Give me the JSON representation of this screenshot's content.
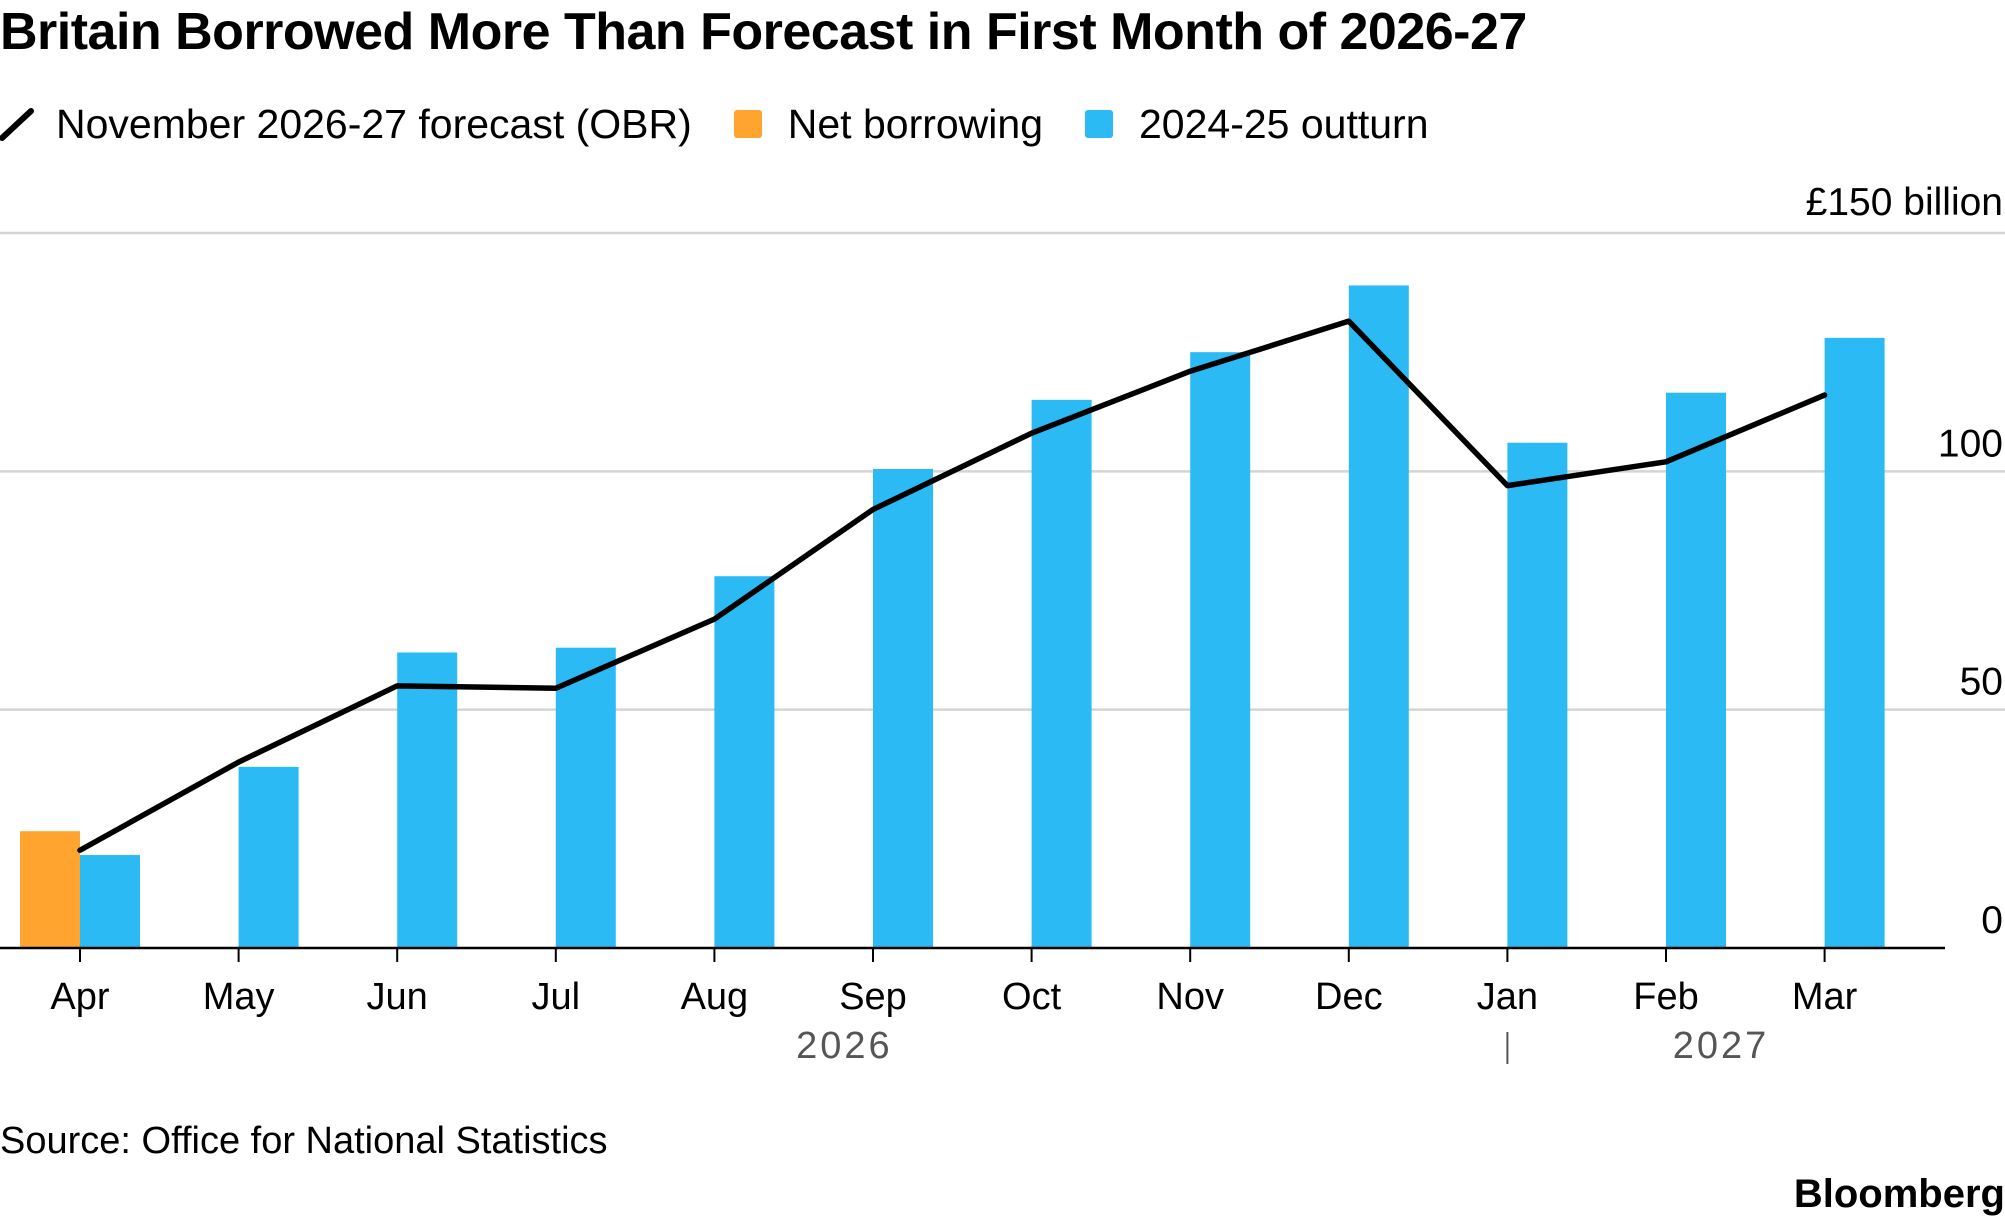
{
  "chart_data": {
    "type": "bar",
    "title": "Britain Borrowed More Than Forecast in First Month of 2026-27",
    "categories": [
      "Apr",
      "May",
      "Jun",
      "Jul",
      "Aug",
      "Sep",
      "Oct",
      "Nov",
      "Dec",
      "Jan",
      "Feb",
      "Mar"
    ],
    "year_labels": [
      {
        "label": "2026",
        "span_start": "Apr",
        "span_end": "Dec"
      },
      {
        "label": "2027",
        "span_start": "Jan",
        "span_end": "Mar"
      }
    ],
    "series": [
      {
        "name": "Net borrowing",
        "kind": "bar",
        "color": "#ffa42e",
        "values": [
          24.5,
          null,
          null,
          null,
          null,
          null,
          null,
          null,
          null,
          null,
          null,
          null
        ]
      },
      {
        "name": "2024-25 outturn",
        "kind": "bar",
        "color": "#2cbaf5",
        "values": [
          19.5,
          38,
          62,
          63,
          78,
          100.5,
          115,
          125,
          139,
          106,
          116.5,
          128
        ]
      },
      {
        "name": "November 2026-27 forecast (OBR)",
        "kind": "line",
        "color": "#000000",
        "values": [
          20.5,
          39,
          55,
          54.5,
          69,
          92,
          108,
          121,
          131.5,
          97,
          102,
          116
        ]
      }
    ],
    "yunit_label": "£150 billion",
    "yticks": [
      {
        "value": 0,
        "label": "0"
      },
      {
        "value": 50,
        "label": "50"
      },
      {
        "value": 100,
        "label": "100"
      },
      {
        "value": 150,
        "label": "£150 billion"
      }
    ],
    "ylim": [
      0,
      150
    ],
    "xlabel": "",
    "ylabel": "",
    "grid": true,
    "legend_position": "top-left"
  },
  "source": "Source: Office for National Statistics",
  "brand": "Bloomberg"
}
